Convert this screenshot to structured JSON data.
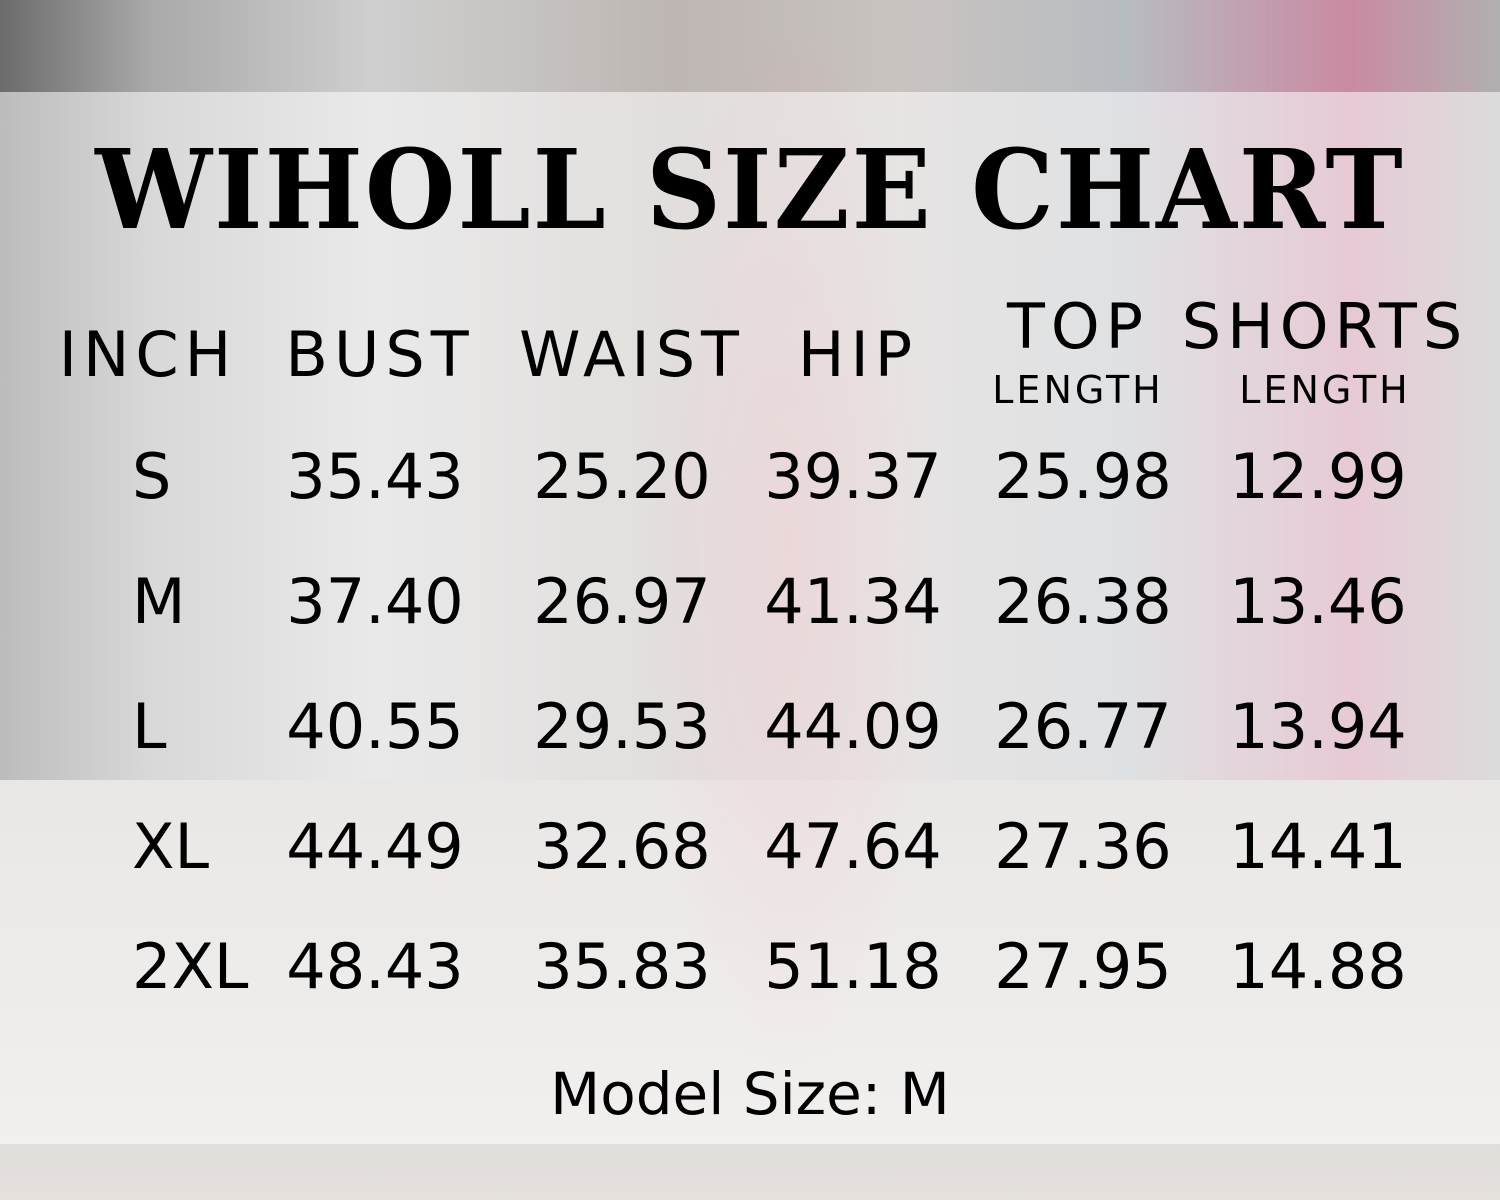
{
  "title": "WIHOLL SIZE CHART",
  "headers": [
    "INCH",
    "BUST",
    "WAIST",
    "HIP"
  ],
  "top_header": {
    "main": "TOP",
    "sub": "LENGTH"
  },
  "shorts_header": {
    "main": "SHORTS",
    "sub": "LENGTH"
  },
  "rows": [
    {
      "size": "S",
      "values": [
        "35.43",
        "25.20",
        "39.37",
        "25.98",
        "12.99"
      ]
    },
    {
      "size": "M",
      "values": [
        "37.40",
        "26.97",
        "41.34",
        "26.38",
        "13.46"
      ]
    },
    {
      "size": "L",
      "values": [
        "40.55",
        "29.53",
        "44.09",
        "26.77",
        "13.94"
      ]
    },
    {
      "size": "XL",
      "values": [
        "44.49",
        "32.68",
        "47.64",
        "27.36",
        "14.41"
      ]
    },
    {
      "size": "2XL",
      "values": [
        "48.43",
        "35.83",
        "51.18",
        "27.95",
        "14.88"
      ]
    }
  ],
  "model_size": "Model Size: M"
}
